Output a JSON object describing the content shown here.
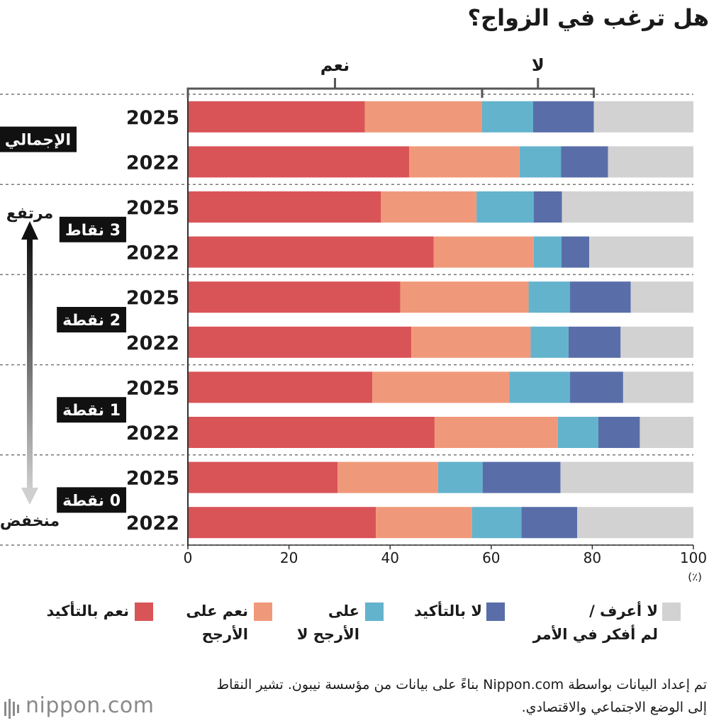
{
  "chart_data": {
    "type": "bar",
    "orientation": "horizontal",
    "stacked": true,
    "title": "هل ترغب في الزواج؟",
    "xlim": [
      0,
      100
    ],
    "x_ticks": [
      "0",
      "20",
      "40",
      "60",
      "80",
      "100"
    ],
    "x_unit": "(٪)",
    "bracket_labels": {
      "yes": "نعم",
      "no": "لا"
    },
    "groups": [
      {
        "label": "الإجمالي",
        "side_label": "",
        "rows": [
          {
            "year": "2025",
            "values": [
              35,
              23.2,
              10.1,
              12,
              19.7
            ]
          },
          {
            "year": "2022",
            "values": [
              43.8,
              21.8,
              8.2,
              9.3,
              16.9
            ]
          }
        ]
      },
      {
        "label": "3 نقاط",
        "side_label": "مرتفع",
        "rows": [
          {
            "year": "2025",
            "values": [
              38.2,
              18.9,
              11.3,
              5.6,
              26
            ]
          },
          {
            "year": "2022",
            "values": [
              48.6,
              19.8,
              5.5,
              5.5,
              20.6
            ]
          }
        ]
      },
      {
        "label": "2 نقطة",
        "side_label": "",
        "rows": [
          {
            "year": "2025",
            "values": [
              42,
              25.4,
              8.2,
              12,
              12.4
            ]
          },
          {
            "year": "2022",
            "values": [
              44.2,
              23.6,
              7.5,
              10.3,
              14.4
            ]
          }
        ]
      },
      {
        "label": "1 نقطة",
        "side_label": "",
        "rows": [
          {
            "year": "2025",
            "values": [
              36.5,
              27.1,
              12,
              10.5,
              13.9
            ]
          },
          {
            "year": "2022",
            "values": [
              48.8,
              24.4,
              8,
              8.2,
              10.6
            ]
          }
        ]
      },
      {
        "label": "0 نقطة",
        "side_label": "منخفض",
        "rows": [
          {
            "year": "2025",
            "values": [
              29.6,
              19.9,
              8.8,
              15.4,
              26.3
            ]
          },
          {
            "year": "2022",
            "values": [
              37.2,
              19,
              9.8,
              11,
              23
            ]
          }
        ]
      }
    ],
    "series": [
      {
        "name": "نعم بالتأكيد",
        "color": "#d95457"
      },
      {
        "name": "نعم على الأرجح",
        "color": "#f0997a"
      },
      {
        "name": "على الأرجح لا",
        "color": "#63b3cd"
      },
      {
        "name": "لا بالتأكيد",
        "color": "#596ea9"
      },
      {
        "name": "لا أعرف / لم أفكر في الأمر",
        "color": "#d2d2d2"
      }
    ],
    "legend_lines": [
      [
        "نعم بالتأكيد"
      ],
      [
        "نعم على",
        "الأرجح"
      ],
      [
        "على",
        "الأرجح لا"
      ],
      [
        "لا بالتأكيد"
      ],
      [
        "لا أعرف /",
        "لم أفكر في الأمر"
      ]
    ]
  },
  "source_text": "تم إعداد البيانات بواسطة Nippon.com بناءً على بيانات من مؤسسة نيبون. تشير النقاط إلى الوضع الاجتماعي والاقتصادي.",
  "logo_text": "nippon.com"
}
